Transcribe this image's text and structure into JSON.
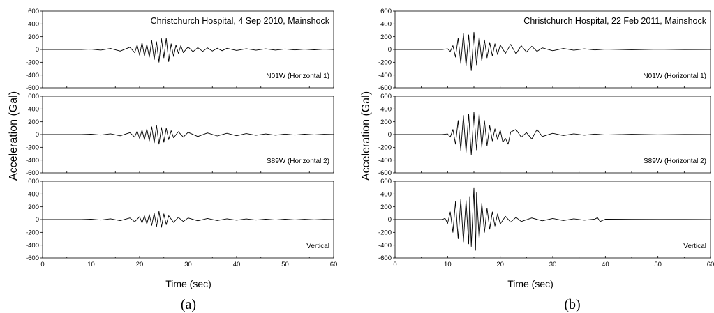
{
  "chart_data": [
    {
      "type": "line",
      "panel_label": "(a)",
      "title": "Christchurch Hospital, 4 Sep 2010, Mainshock",
      "xlabel": "Time (sec)",
      "ylabel": "Acceleration (Gal)",
      "xlim": [
        0,
        60
      ],
      "ylim": [
        -600,
        600
      ],
      "x_ticks": [
        0,
        10,
        20,
        30,
        40,
        50,
        60
      ],
      "y_ticks": [
        600,
        400,
        200,
        0,
        -200,
        -400,
        -600
      ],
      "components": [
        {
          "name": "N01W (Horizontal 1)",
          "x": [
            0,
            8,
            10,
            12,
            14,
            16,
            18,
            19,
            19.5,
            20,
            20.5,
            21,
            21.5,
            22,
            22.5,
            23,
            23.5,
            24,
            24.5,
            25,
            25.5,
            26,
            26.5,
            27,
            27.5,
            28,
            28.5,
            29,
            30,
            31,
            32,
            33,
            34,
            35,
            36,
            37,
            38,
            40,
            42,
            44,
            46,
            48,
            50,
            52,
            54,
            56,
            58,
            60
          ],
          "y": [
            0,
            0,
            5,
            -10,
            15,
            -25,
            35,
            -50,
            70,
            -90,
            110,
            -100,
            80,
            -120,
            140,
            -160,
            120,
            -200,
            170,
            -130,
            180,
            -190,
            90,
            -110,
            70,
            -60,
            60,
            -50,
            40,
            -35,
            30,
            -30,
            25,
            -25,
            20,
            -20,
            18,
            -15,
            12,
            -12,
            10,
            -10,
            8,
            -8,
            6,
            -6,
            5,
            0
          ]
        },
        {
          "name": "S89W (Horizontal 2)",
          "x": [
            0,
            8,
            10,
            12,
            14,
            16,
            18,
            19,
            19.5,
            20,
            20.5,
            21,
            21.5,
            22,
            22.5,
            23,
            23.5,
            24,
            24.5,
            25,
            25.5,
            26,
            26.5,
            27,
            28,
            29,
            30,
            32,
            34,
            36,
            38,
            40,
            42,
            44,
            46,
            48,
            50,
            52,
            54,
            56,
            58,
            60
          ],
          "y": [
            0,
            0,
            5,
            -8,
            12,
            -20,
            30,
            -40,
            55,
            -60,
            70,
            -80,
            90,
            -100,
            120,
            -130,
            140,
            -150,
            110,
            -120,
            100,
            -80,
            60,
            -50,
            45,
            -40,
            35,
            -30,
            25,
            -22,
            20,
            -18,
            15,
            -12,
            10,
            -10,
            8,
            -8,
            6,
            -5,
            4,
            0
          ]
        },
        {
          "name": "Vertical",
          "x": [
            0,
            8,
            10,
            12,
            14,
            16,
            18,
            19,
            20,
            20.5,
            21,
            21.5,
            22,
            22.5,
            23,
            23.5,
            24,
            24.5,
            25,
            25.5,
            26,
            27,
            28,
            29,
            30,
            32,
            34,
            36,
            38,
            40,
            42,
            44,
            46,
            48,
            50,
            52,
            54,
            56,
            58,
            60
          ],
          "y": [
            0,
            0,
            5,
            -8,
            12,
            -18,
            25,
            -35,
            45,
            -55,
            60,
            -70,
            80,
            -90,
            100,
            -110,
            130,
            -120,
            90,
            -80,
            60,
            -45,
            35,
            -30,
            25,
            -20,
            18,
            -15,
            12,
            -10,
            10,
            -8,
            7,
            -6,
            5,
            -5,
            4,
            -3,
            3,
            0
          ]
        }
      ]
    },
    {
      "type": "line",
      "panel_label": "(b)",
      "title": "Christchurch Hospital, 22 Feb 2011, Mainshock",
      "xlabel": "Time (sec)",
      "ylabel": "Acceleration (Gal)",
      "xlim": [
        0,
        60
      ],
      "ylim": [
        -600,
        600
      ],
      "x_ticks": [
        0,
        10,
        20,
        30,
        40,
        50,
        60
      ],
      "y_ticks": [
        600,
        400,
        200,
        0,
        -200,
        -400,
        -600
      ],
      "components": [
        {
          "name": "N01W (Horizontal 1)",
          "x": [
            0,
            9,
            10,
            10.5,
            11,
            11.5,
            12,
            12.5,
            13,
            13.5,
            14,
            14.5,
            15,
            15.5,
            16,
            16.5,
            17,
            17.5,
            18,
            18.5,
            19,
            19.5,
            20,
            21,
            22,
            23,
            24,
            25,
            26,
            27,
            28,
            30,
            32,
            34,
            36,
            38,
            40,
            45,
            50,
            55,
            60
          ],
          "y": [
            0,
            0,
            10,
            -30,
            60,
            -120,
            180,
            -220,
            250,
            -260,
            230,
            -330,
            270,
            -240,
            200,
            -180,
            150,
            -130,
            110,
            -100,
            90,
            -80,
            70,
            -60,
            80,
            -70,
            60,
            -40,
            50,
            -30,
            25,
            -20,
            15,
            -12,
            10,
            -8,
            6,
            -4,
            3,
            -2,
            0
          ]
        },
        {
          "name": "S89W (Horizontal 2)",
          "x": [
            0,
            9,
            10,
            10.5,
            11,
            11.5,
            12,
            12.5,
            13,
            13.5,
            14,
            14.5,
            15,
            15.5,
            16,
            16.5,
            17,
            17.5,
            18,
            18.5,
            19,
            19.5,
            20,
            20.5,
            21,
            21.5,
            22,
            23,
            24,
            25,
            26,
            27,
            28,
            30,
            32,
            34,
            36,
            38,
            40,
            45,
            50,
            55,
            60
          ],
          "y": [
            0,
            0,
            10,
            -40,
            80,
            -150,
            220,
            -250,
            300,
            -280,
            320,
            -320,
            350,
            -240,
            330,
            -200,
            220,
            -180,
            140,
            -100,
            90,
            -80,
            70,
            -120,
            -60,
            -150,
            40,
            80,
            -40,
            30,
            -70,
            80,
            -30,
            20,
            -15,
            12,
            -10,
            8,
            -6,
            4,
            -3,
            2,
            0
          ]
        },
        {
          "name": "Vertical",
          "x": [
            0,
            9,
            9.5,
            10,
            10.5,
            11,
            11.5,
            12,
            12.5,
            13,
            13.5,
            14,
            14.2,
            14.5,
            15,
            15.3,
            15.5,
            16,
            16.5,
            17,
            17.5,
            18,
            18.5,
            19,
            19.5,
            20,
            21,
            22,
            23,
            24,
            26,
            28,
            30,
            32,
            34,
            36,
            38,
            38.5,
            39,
            40,
            45,
            50,
            55,
            60
          ],
          "y": [
            0,
            0,
            20,
            -60,
            120,
            -200,
            280,
            -300,
            320,
            -350,
            300,
            -380,
            360,
            -420,
            500,
            -480,
            420,
            -300,
            260,
            -200,
            180,
            -150,
            120,
            -100,
            90,
            -70,
            50,
            -40,
            35,
            -30,
            25,
            -20,
            18,
            -15,
            12,
            -10,
            8,
            30,
            -30,
            5,
            3,
            2,
            2,
            0
          ]
        }
      ]
    }
  ]
}
